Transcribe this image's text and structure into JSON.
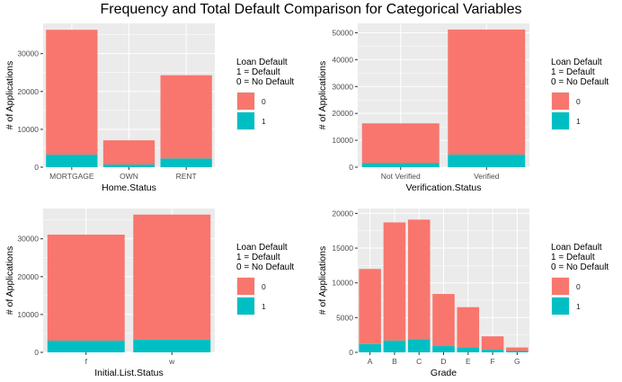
{
  "title": "Frequency and Total Default Comparison for Categorical Variables",
  "colors": {
    "default_0": "#F8766D",
    "default_1": "#00BFC4",
    "panel_bg": "#EBEBEB",
    "grid": "#FFFFFF"
  },
  "chart_data": [
    {
      "type": "bar",
      "stacked": true,
      "categories": [
        "MORTGAGE",
        "OWN",
        "RENT"
      ],
      "series": [
        {
          "name": "0",
          "values": [
            33000,
            6400,
            22000
          ]
        },
        {
          "name": "1",
          "values": [
            3300,
            700,
            2300
          ]
        }
      ],
      "xlabel": "Home.Status",
      "ylabel": "# of Applications",
      "ylim": [
        0,
        38000
      ],
      "yticks": [
        0,
        10000,
        20000,
        30000
      ],
      "legend": {
        "title": [
          "Loan Default",
          "1 = Default",
          "0 = No Default"
        ],
        "entries": [
          "0",
          "1"
        ],
        "placement": "right"
      },
      "grid": true
    },
    {
      "type": "bar",
      "stacked": true,
      "categories": [
        "Not Verified",
        "Verified"
      ],
      "series": [
        {
          "name": "0",
          "values": [
            14800,
            46500
          ]
        },
        {
          "name": "1",
          "values": [
            1500,
            4700
          ]
        }
      ],
      "xlabel": "Verification.Status",
      "ylabel": "# of Applications",
      "ylim": [
        0,
        53500
      ],
      "yticks": [
        0,
        10000,
        20000,
        30000,
        40000,
        50000
      ],
      "legend": {
        "title": [
          "Loan Default",
          "1 = Default",
          "0 = No Default"
        ],
        "entries": [
          "0",
          "1"
        ],
        "placement": "right"
      },
      "grid": true
    },
    {
      "type": "bar",
      "stacked": true,
      "categories": [
        "f",
        "w"
      ],
      "series": [
        {
          "name": "0",
          "values": [
            28000,
            33000
          ]
        },
        {
          "name": "1",
          "values": [
            3100,
            3400
          ]
        }
      ],
      "xlabel": "Initial.List.Status",
      "ylabel": "# of Applications",
      "ylim": [
        0,
        38000
      ],
      "yticks": [
        0,
        10000,
        20000,
        30000
      ],
      "legend": {
        "title": [
          "Loan Default",
          "1 = Default",
          "0 = No Default"
        ],
        "entries": [
          "0",
          "1"
        ],
        "placement": "right"
      },
      "grid": true
    },
    {
      "type": "bar",
      "stacked": true,
      "categories": [
        "A",
        "B",
        "C",
        "D",
        "E",
        "F",
        "G"
      ],
      "series": [
        {
          "name": "0",
          "values": [
            10800,
            17000,
            17200,
            7500,
            5800,
            1900,
            500
          ]
        },
        {
          "name": "1",
          "values": [
            1200,
            1700,
            1900,
            900,
            700,
            400,
            200
          ]
        }
      ],
      "xlabel": "Grade",
      "ylabel": "# of Applications",
      "ylim": [
        0,
        20700
      ],
      "yticks": [
        0,
        5000,
        10000,
        15000,
        20000
      ],
      "legend": {
        "title": [
          "Loan Default",
          "1 = Default",
          "0 = No Default"
        ],
        "entries": [
          "0",
          "1"
        ],
        "placement": "right"
      },
      "grid": true
    }
  ]
}
